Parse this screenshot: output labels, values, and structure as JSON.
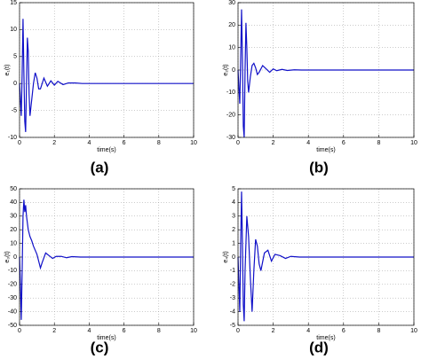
{
  "chart_data": [
    {
      "type": "line",
      "caption": "(a)",
      "xlabel": "time(s)",
      "ylabel": "e₁(t)",
      "color": "#1010c8",
      "grid": true,
      "xlim": [
        0,
        10
      ],
      "xticks": [
        0,
        2,
        4,
        6,
        8,
        10
      ],
      "ylim": [
        -10,
        15
      ],
      "yticks": [
        -10,
        -5,
        0,
        5,
        10,
        15
      ],
      "x": [
        0,
        0.05,
        0.1,
        0.15,
        0.2,
        0.25,
        0.3,
        0.35,
        0.4,
        0.45,
        0.5,
        0.55,
        0.6,
        0.7,
        0.8,
        0.9,
        1.0,
        1.1,
        1.2,
        1.4,
        1.6,
        1.8,
        2.0,
        2.2,
        2.5,
        2.8,
        3.2,
        3.6,
        4,
        6,
        8,
        10
      ],
      "values": [
        0,
        -3,
        -6,
        2,
        12,
        2,
        -7,
        -9,
        0,
        8.5,
        6,
        -2,
        -6,
        -3,
        0,
        2,
        1,
        -1,
        -1,
        1,
        -0.5,
        0.5,
        -0.3,
        0.4,
        -0.2,
        0.1,
        0.1,
        0,
        0,
        0,
        0,
        0
      ]
    },
    {
      "type": "line",
      "caption": "(b)",
      "xlabel": "time(s)",
      "ylabel": "e₂(t)",
      "color": "#1010c8",
      "grid": true,
      "xlim": [
        0,
        10
      ],
      "xticks": [
        0,
        2,
        4,
        6,
        8,
        10
      ],
      "ylim": [
        -30,
        30
      ],
      "yticks": [
        -30,
        -20,
        -10,
        0,
        10,
        20,
        30
      ],
      "x": [
        0,
        0.05,
        0.1,
        0.15,
        0.2,
        0.25,
        0.3,
        0.35,
        0.4,
        0.45,
        0.5,
        0.55,
        0.6,
        0.7,
        0.8,
        0.9,
        1.0,
        1.1,
        1.2,
        1.4,
        1.6,
        1.8,
        2.0,
        2.2,
        2.5,
        2.8,
        3.2,
        3.6,
        4,
        6,
        8,
        10
      ],
      "values": [
        0,
        -8,
        -15,
        5,
        27,
        5,
        -25,
        -30,
        0,
        21,
        10,
        -5,
        -10,
        -3,
        2,
        3,
        1,
        -2,
        -1,
        2,
        0.5,
        -1,
        0.5,
        -0.3,
        0.3,
        -0.2,
        0.1,
        0,
        0,
        0,
        0,
        0
      ]
    },
    {
      "type": "line",
      "caption": "(c)",
      "xlabel": "time(s)",
      "ylabel": "e₃(t)",
      "color": "#1010c8",
      "grid": true,
      "xlim": [
        0,
        10
      ],
      "xticks": [
        0,
        2,
        4,
        6,
        8,
        10
      ],
      "ylim": [
        -50,
        50
      ],
      "yticks": [
        -50,
        -40,
        -30,
        -20,
        -10,
        0,
        10,
        20,
        30,
        40,
        50
      ],
      "x": [
        0,
        0.05,
        0.1,
        0.15,
        0.2,
        0.25,
        0.3,
        0.35,
        0.4,
        0.5,
        0.6,
        0.7,
        0.8,
        0.9,
        1.0,
        1.1,
        1.2,
        1.3,
        1.5,
        1.7,
        1.9,
        2.1,
        2.4,
        2.7,
        3.0,
        3.5,
        4,
        6,
        8,
        10
      ],
      "values": [
        0,
        -20,
        -46,
        -10,
        30,
        42,
        33,
        38,
        30,
        20,
        15,
        12,
        8,
        5,
        2,
        -3,
        -8,
        -4,
        3,
        1,
        -1,
        0.5,
        0.5,
        -0.5,
        0.3,
        0,
        0,
        0,
        0,
        0
      ]
    },
    {
      "type": "line",
      "caption": "(d)",
      "xlabel": "time(s)",
      "ylabel": "e₄(t)",
      "color": "#1010c8",
      "grid": true,
      "xlim": [
        0,
        10
      ],
      "xticks": [
        0,
        2,
        4,
        6,
        8,
        10
      ],
      "ylim": [
        -5,
        5
      ],
      "yticks": [
        -5,
        -4,
        -3,
        -2,
        -1,
        0,
        1,
        2,
        3,
        4,
        5
      ],
      "x": [
        0,
        0.05,
        0.1,
        0.15,
        0.2,
        0.25,
        0.3,
        0.35,
        0.4,
        0.5,
        0.6,
        0.7,
        0.8,
        0.9,
        1.0,
        1.1,
        1.2,
        1.3,
        1.5,
        1.7,
        1.9,
        2.1,
        2.4,
        2.7,
        3.0,
        3.5,
        4,
        6,
        8,
        10
      ],
      "values": [
        0,
        -2,
        -4,
        1,
        4.8,
        1,
        -3.5,
        -4.7,
        -1,
        3,
        1.5,
        -1.5,
        -4,
        -1,
        1.3,
        0.8,
        -0.5,
        -1,
        0.3,
        0.5,
        -0.3,
        0.2,
        0.1,
        -0.1,
        0.05,
        0,
        0,
        0,
        0,
        0
      ]
    }
  ]
}
